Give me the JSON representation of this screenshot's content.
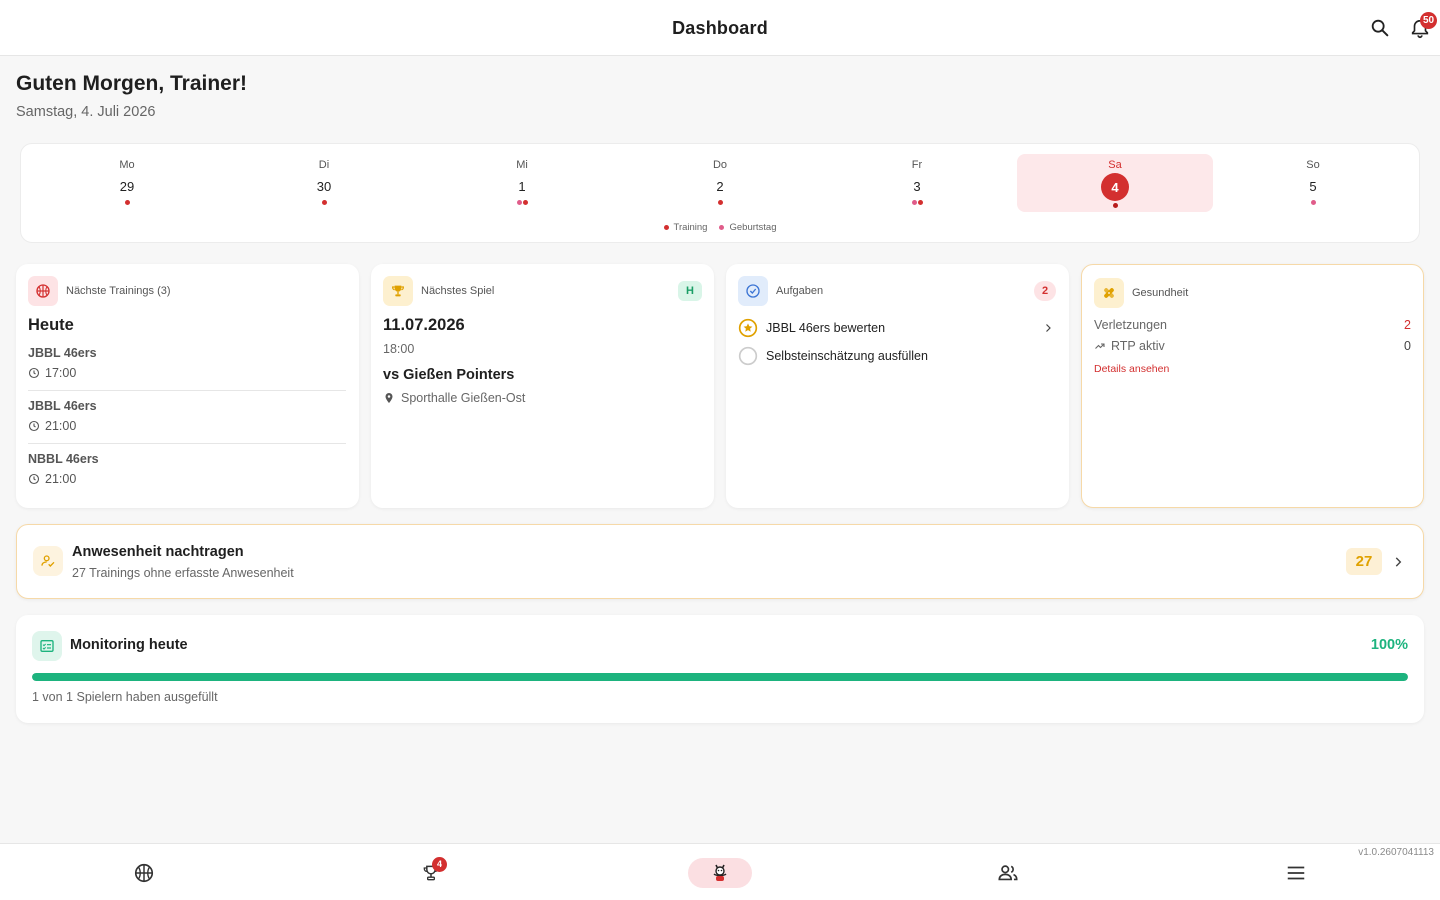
{
  "header": {
    "title": "Dashboard",
    "notifications_count": "50"
  },
  "greeting": {
    "title": "Guten Morgen, Trainer!",
    "date": "Samstag, 4. Juli 2026"
  },
  "week": {
    "days": [
      {
        "name": "Mo",
        "num": "29"
      },
      {
        "name": "Di",
        "num": "30"
      },
      {
        "name": "Mi",
        "num": "1"
      },
      {
        "name": "Do",
        "num": "2"
      },
      {
        "name": "Fr",
        "num": "3"
      },
      {
        "name": "Sa",
        "num": "4"
      },
      {
        "name": "So",
        "num": "5"
      }
    ],
    "legend": {
      "training": "Training",
      "birthday": "Geburtstag"
    },
    "colors": {
      "training": "#d32f2f",
      "birthday": "#e05c8a",
      "selected": "#d32f2f"
    }
  },
  "trainings": {
    "label": "Nächste Trainings (3)",
    "heading": "Heute",
    "items": [
      {
        "team": "JBBL 46ers",
        "time": "17:00"
      },
      {
        "team": "JBBL 46ers",
        "time": "21:00"
      },
      {
        "team": "NBBL 46ers",
        "time": "21:00"
      }
    ]
  },
  "next_game": {
    "label": "Nächstes Spiel",
    "home_badge": "H",
    "date": "11.07.2026",
    "time": "18:00",
    "opponent": "vs Gießen Pointers",
    "venue": "Sporthalle Gießen-Ost"
  },
  "tasks": {
    "label": "Aufgaben",
    "count": "2",
    "items": [
      {
        "text": "JBBL 46ers bewerten"
      },
      {
        "text": "Selbsteinschätzung ausfüllen"
      }
    ]
  },
  "health": {
    "label": "Gesundheit",
    "injuries_label": "Verletzungen",
    "injuries_value": "2",
    "rtp_label": "RTP aktiv",
    "rtp_value": "0",
    "details_link": "Details ansehen"
  },
  "attendance": {
    "title": "Anwesenheit nachtragen",
    "subtitle": "27 Trainings ohne erfasste Anwesenheit",
    "count": "27"
  },
  "monitoring": {
    "title": "Monitoring heute",
    "percent_label": "100%",
    "progress": 1.0,
    "subtitle": "1 von 1 Spielern haben ausgefüllt",
    "color": "#1db37e"
  },
  "bottom_nav": {
    "games_badge": "4"
  },
  "version": "v1.0.2607041113"
}
